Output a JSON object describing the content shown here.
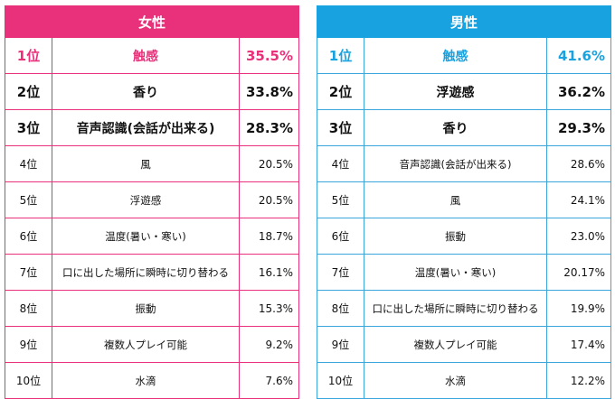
{
  "colors": {
    "female_accent": "#e8317a",
    "male_accent": "#18a3e0"
  },
  "female": {
    "title": "女性",
    "rows": [
      {
        "rank": "1位",
        "item": "触感",
        "pct": "35.5%"
      },
      {
        "rank": "2位",
        "item": "香り",
        "pct": "33.8%"
      },
      {
        "rank": "3位",
        "item": "音声認識(会話が出来る)",
        "pct": "28.3%"
      },
      {
        "rank": "4位",
        "item": "風",
        "pct": "20.5%"
      },
      {
        "rank": "5位",
        "item": "浮遊感",
        "pct": "20.5%"
      },
      {
        "rank": "6位",
        "item": "温度(暑い・寒い)",
        "pct": "18.7%"
      },
      {
        "rank": "7位",
        "item": "口に出した場所に瞬時に切り替わる",
        "pct": "16.1%"
      },
      {
        "rank": "8位",
        "item": "振動",
        "pct": "15.3%"
      },
      {
        "rank": "9位",
        "item": "複数人プレイ可能",
        "pct": "9.2%"
      },
      {
        "rank": "10位",
        "item": "水滴",
        "pct": "7.6%"
      }
    ]
  },
  "male": {
    "title": "男性",
    "rows": [
      {
        "rank": "1位",
        "item": "触感",
        "pct": "41.6%"
      },
      {
        "rank": "2位",
        "item": "浮遊感",
        "pct": "36.2%"
      },
      {
        "rank": "3位",
        "item": "香り",
        "pct": "29.3%"
      },
      {
        "rank": "4位",
        "item": "音声認識(会話が出来る)",
        "pct": "28.6%"
      },
      {
        "rank": "5位",
        "item": "風",
        "pct": "24.1%"
      },
      {
        "rank": "6位",
        "item": "振動",
        "pct": "23.0%"
      },
      {
        "rank": "7位",
        "item": "温度(暑い・寒い)",
        "pct": "20.17%"
      },
      {
        "rank": "8位",
        "item": "口に出した場所に瞬時に切り替わる",
        "pct": "19.9%"
      },
      {
        "rank": "9位",
        "item": "複数人プレイ可能",
        "pct": "17.4%"
      },
      {
        "rank": "10位",
        "item": "水滴",
        "pct": "12.2%"
      }
    ]
  }
}
